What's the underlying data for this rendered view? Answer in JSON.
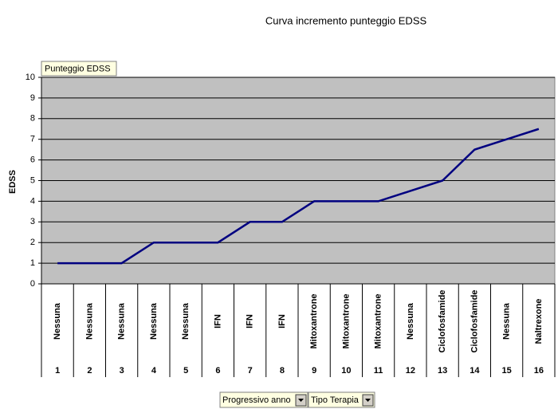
{
  "chart_data": {
    "type": "line",
    "title": "Curva incremento punteggio EDSS",
    "y_label": "EDSS",
    "categories": [
      "1",
      "2",
      "3",
      "4",
      "5",
      "6",
      "7",
      "8",
      "9",
      "10",
      "11",
      "12",
      "13",
      "14",
      "15",
      "16"
    ],
    "therapies": [
      "Nessuna",
      "Nessuna",
      "Nessuna",
      "Nessuna",
      "Nessuna",
      "IFN",
      "IFN",
      "IFN",
      "Mitoxantrone",
      "Mitoxantrone",
      "Mitoxantrone",
      "Nessuna",
      "Ciclofosfamide",
      "Ciclofosfamide",
      "Nessuna",
      "Naltrexone"
    ],
    "series": [
      {
        "name": "Punteggio EDSS",
        "color": "#000080",
        "values": [
          1,
          1,
          1,
          2,
          2,
          2,
          3,
          3,
          4,
          4,
          4,
          4.5,
          5,
          6.5,
          7,
          7.5
        ]
      }
    ],
    "ylim": [
      0,
      10
    ],
    "yticks": [
      0,
      1,
      2,
      3,
      4,
      5,
      6,
      7,
      8,
      9,
      10
    ],
    "grid": true,
    "plot_background": "#c0c0c0",
    "field_buttons": [
      "Progressivo anno",
      "Tipo Terapia"
    ]
  }
}
